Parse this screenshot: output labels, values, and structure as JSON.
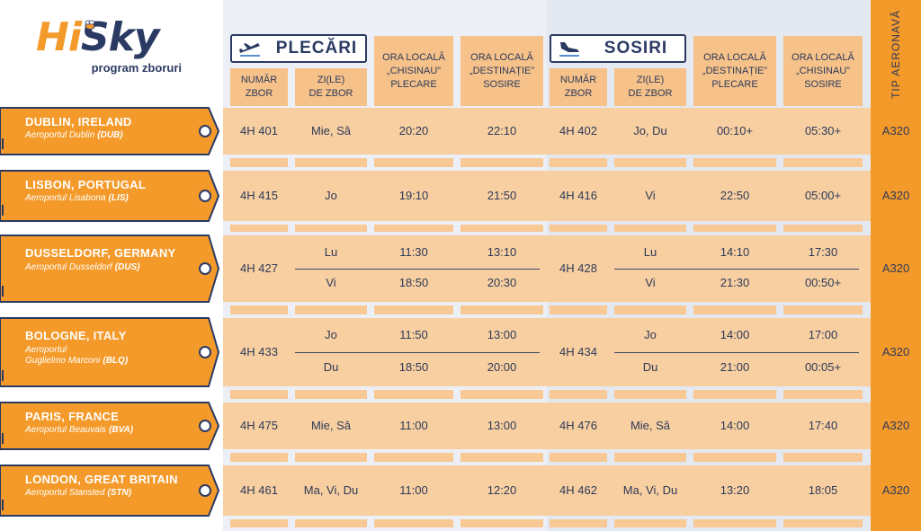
{
  "brand": {
    "hi": "Hi",
    "sky": "Sky",
    "subtitle": "program zboruri"
  },
  "departures": {
    "title": "PLECĂRI",
    "icon": "plane-departure-icon"
  },
  "arrivals": {
    "title": "SOSIRI",
    "icon": "plane-arrival-icon"
  },
  "headers": {
    "flight_no": "NUMĂR\nZBOR",
    "days": "ZI(LE)\nDE ZBOR",
    "dep_local_chisinau": "ORA LOCALĂ\n„CHISINAU”\nPLECARE",
    "dep_local_destination": "ORA LOCALĂ\n„DESTINAȚIE”\nSOSIRE",
    "arr_local_destination": "ORA LOCALĂ\n„DESTINAȚIE”\nPLECARE",
    "arr_local_chisinau": "ORA LOCALĂ\n„CHISINAU”\nSOSIRE",
    "aircraft_type": "TIP AERONAVĂ"
  },
  "colors": {
    "accent": "#f49a2a",
    "navy": "#2b3a63",
    "cell": "#f8cfa0"
  },
  "routes": [
    {
      "city": "DUBLIN, IRELAND",
      "airport": "Aeroportul Dublin",
      "code": "(DUB)",
      "dep_flight": "4H 401",
      "arr_flight": "4H 402",
      "aircraft": "A320",
      "legs": [
        {
          "dep_days": "Mie, Sâ",
          "dep_time": "20:20",
          "dep_arrive": "22:10",
          "arr_days": "Jo, Du",
          "arr_time": "00:10+",
          "arr_arrive": "05:30+"
        }
      ]
    },
    {
      "city": "LISBON, PORTUGAL",
      "airport": "Aeroportul Lisabona",
      "code": "(LIS)",
      "dep_flight": "4H 415",
      "arr_flight": "4H 416",
      "aircraft": "A320",
      "legs": [
        {
          "dep_days": "Jo",
          "dep_time": "19:10",
          "dep_arrive": "21:50",
          "arr_days": "Vi",
          "arr_time": "22:50",
          "arr_arrive": "05:00+"
        }
      ]
    },
    {
      "city": "DUSSELDORF, GERMANY",
      "airport": "Aeroportul Dusseldorf",
      "code": "(DUS)",
      "dep_flight": "4H 427",
      "arr_flight": "4H 428",
      "aircraft": "A320",
      "legs": [
        {
          "dep_days": "Lu",
          "dep_time": "11:30",
          "dep_arrive": "13:10",
          "arr_days": "Lu",
          "arr_time": "14:10",
          "arr_arrive": "17:30"
        },
        {
          "dep_days": "Vi",
          "dep_time": "18:50",
          "dep_arrive": "20:30",
          "arr_days": "Vi",
          "arr_time": "21:30",
          "arr_arrive": "00:50+"
        }
      ]
    },
    {
      "city": "BOLOGNE, ITALY",
      "airport": "Aeroportul\nGuglielmo Marconi",
      "code": "(BLQ)",
      "dep_flight": "4H 433",
      "arr_flight": "4H 434",
      "aircraft": "A320",
      "legs": [
        {
          "dep_days": "Jo",
          "dep_time": "11:50",
          "dep_arrive": "13:00",
          "arr_days": "Jo",
          "arr_time": "14:00",
          "arr_arrive": "17:00"
        },
        {
          "dep_days": "Du",
          "dep_time": "18:50",
          "dep_arrive": "20:00",
          "arr_days": "Du",
          "arr_time": "21:00",
          "arr_arrive": "00:05+"
        }
      ]
    },
    {
      "city": "PARIS, FRANCE",
      "airport": "Aeroportul Beauvais",
      "code": "(BVA)",
      "dep_flight": "4H 475",
      "arr_flight": "4H 476",
      "aircraft": "A320",
      "legs": [
        {
          "dep_days": "Mie, Sâ",
          "dep_time": "11:00",
          "dep_arrive": "13:00",
          "arr_days": "Mie, Sâ",
          "arr_time": "14:00",
          "arr_arrive": "17:40"
        }
      ]
    },
    {
      "city": "LONDON, GREAT BRITAIN",
      "airport": "Aeroportul Stansted",
      "code": "(STN)",
      "dep_flight": "4H 461",
      "arr_flight": "4H 462",
      "aircraft": "A320",
      "legs": [
        {
          "dep_days": "Ma, Vi, Du",
          "dep_time": "11:00",
          "dep_arrive": "12:20",
          "arr_days": "Ma, Vi, Du",
          "arr_time": "13:20",
          "arr_arrive": "18:05"
        }
      ]
    }
  ]
}
